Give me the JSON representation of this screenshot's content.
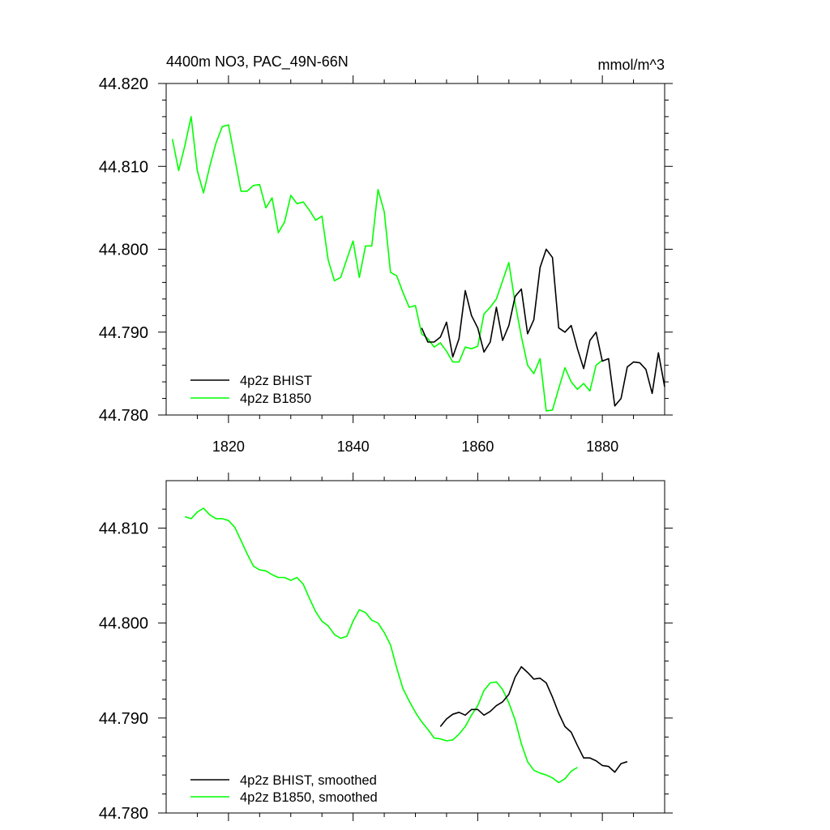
{
  "chart_data": [
    {
      "type": "line",
      "title": "4400m NO3, PAC_49N-66N",
      "units": "mmol/m^3",
      "xlim": [
        1810,
        1890
      ],
      "ylim": [
        44.78,
        44.82
      ],
      "xticks": [
        1820,
        1840,
        1860,
        1880
      ],
      "yticks": [
        44.78,
        44.79,
        44.8,
        44.81,
        44.82
      ],
      "xtick_labels": [
        "1820",
        "1840",
        "1860",
        "1880"
      ],
      "ytick_labels": [
        "44.780",
        "44.790",
        "44.800",
        "44.810",
        "44.820"
      ],
      "legend": "bottom-left",
      "series": [
        {
          "name": "4p2z BHIST",
          "color": "#000000",
          "x_start": 1851,
          "values": [
            44.7905,
            44.7888,
            44.7888,
            44.7894,
            44.7912,
            44.787,
            44.7892,
            44.795,
            44.792,
            44.7905,
            44.7876,
            44.7888,
            44.793,
            44.789,
            44.7908,
            44.7943,
            44.7952,
            44.7898,
            44.7915,
            44.7978,
            44.8,
            44.799,
            44.7905,
            44.79,
            44.7908,
            44.788,
            44.7856,
            44.789,
            44.79,
            44.7865,
            44.7868,
            44.7811,
            44.782,
            44.7858,
            44.7864,
            44.7863,
            44.7855,
            44.7826,
            44.7875,
            44.7834
          ]
        },
        {
          "name": "4p2z B1850",
          "color": "#00ff00",
          "x_start": 1811,
          "values": [
            44.8133,
            44.8095,
            44.8125,
            44.816,
            44.8095,
            44.8068,
            44.81,
            44.8128,
            44.8148,
            44.815,
            44.811,
            44.807,
            44.807,
            44.8077,
            44.8078,
            44.805,
            44.8062,
            44.802,
            44.8033,
            44.8065,
            44.8055,
            44.8057,
            44.8047,
            44.8035,
            44.804,
            44.7987,
            44.7962,
            44.7966,
            44.7988,
            44.801,
            44.7966,
            44.8004,
            44.8004,
            44.8072,
            44.8045,
            44.7972,
            44.7968,
            44.7948,
            44.793,
            44.7932,
            44.7898,
            44.7892,
            44.7882,
            44.7887,
            44.7877,
            44.7864,
            44.7864,
            44.7882,
            44.788,
            44.7883,
            44.7922,
            44.793,
            44.794,
            44.7962,
            44.7984,
            44.7935,
            44.7895,
            44.786,
            44.785,
            44.7868,
            44.7805,
            44.7806,
            44.7832,
            44.7857,
            44.784,
            44.7831,
            44.7838,
            44.7829,
            44.786,
            44.7866
          ]
        }
      ]
    },
    {
      "type": "line",
      "xlim": [
        1810,
        1890
      ],
      "ylim": [
        44.78,
        44.815
      ],
      "xticks": [
        1820,
        1840,
        1860,
        1880
      ],
      "yticks": [
        44.78,
        44.79,
        44.8,
        44.81
      ],
      "ytick_labels": [
        "44.780",
        "44.790",
        "44.800",
        "44.810"
      ],
      "legend": "bottom-left",
      "series": [
        {
          "name": "4p2z BHIST, smoothed",
          "color": "#000000",
          "x_start": 1854,
          "values": [
            44.7891,
            44.7899,
            44.7904,
            44.7906,
            44.7903,
            44.7909,
            44.7909,
            44.7903,
            44.7907,
            44.7913,
            44.7917,
            44.7925,
            44.7943,
            44.7954,
            44.7948,
            44.7941,
            44.7942,
            44.7937,
            44.7922,
            44.7905,
            44.7891,
            44.7885,
            44.7871,
            44.7858,
            44.7858,
            44.7855,
            44.785,
            44.7849,
            44.7843,
            44.7852,
            44.7854
          ]
        },
        {
          "name": "4p2z B1850, smoothed",
          "color": "#00ff00",
          "x_start": 1813,
          "values": [
            44.8112,
            44.811,
            44.8117,
            44.8121,
            44.8114,
            44.811,
            44.811,
            44.8108,
            44.8101,
            44.8087,
            44.8073,
            44.806,
            44.8056,
            44.8055,
            44.8051,
            44.8048,
            44.8048,
            44.8045,
            44.8048,
            44.8041,
            44.8026,
            44.8012,
            44.8002,
            44.7997,
            44.7988,
            44.7984,
            44.7986,
            44.8002,
            44.8014,
            44.8011,
            44.8003,
            44.8,
            44.799,
            44.7977,
            44.7953,
            44.7931,
            44.7918,
            44.7906,
            44.7896,
            44.7888,
            44.7879,
            44.7878,
            44.7876,
            44.7877,
            44.7883,
            44.7891,
            44.7903,
            44.7913,
            44.7929,
            44.7937,
            44.7938,
            44.793,
            44.7916,
            44.7898,
            44.7873,
            44.7854,
            44.7845,
            44.7842,
            44.784,
            44.7837,
            44.7832,
            44.7836,
            44.7844,
            44.7848
          ]
        }
      ]
    }
  ]
}
